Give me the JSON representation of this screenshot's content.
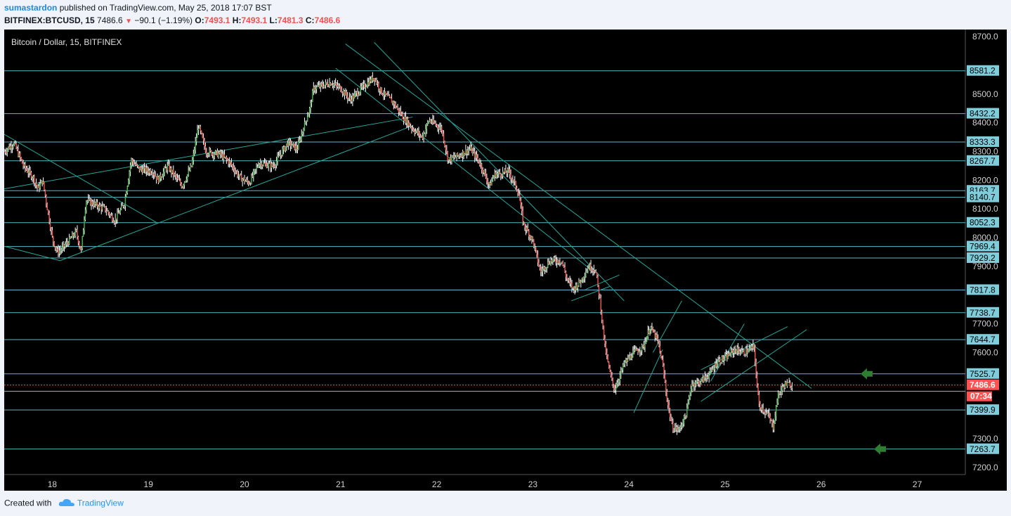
{
  "header": {
    "author": "sumastardon",
    "published_text": "published on TradingView.com, May 25, 2018 17:07 BST",
    "symbol": "BITFINEX:BTCUSD, 15",
    "last": "7486.6",
    "change": "−90.1 (−1.19%)",
    "o_label": "O:",
    "o_value": "7493.1",
    "h_label": "H:",
    "h_value": "7493.1",
    "l_label": "L:",
    "l_value": "7481.3",
    "c_label": "C:",
    "c_value": "7486.6"
  },
  "footer": {
    "created_with": "Created with",
    "brand": "TradingView"
  },
  "colors": {
    "background": "#000000",
    "level_line": "#5fb7c9",
    "trend_line": "#26a69a",
    "up": "#4caf50",
    "down": "#ef5350",
    "wick": "#ffffff",
    "price_line": "#ff5252",
    "arrow": "#2e7d32",
    "label_bg": "#7fcddb"
  },
  "chart_data": {
    "type": "candlestick",
    "title": "Bitcoin / Dollar, 15, BITFINEX",
    "ylim": [
      7175,
      8725
    ],
    "y_ticks": [
      7200,
      7300,
      7600,
      7700,
      7900,
      8000,
      8100,
      8200,
      8300,
      8400,
      8500,
      8700
    ],
    "y_tick_labels": [
      "7200.0",
      "7300.0",
      "7600.0",
      "7700.0",
      "7900.0",
      "8000.0",
      "8100.0",
      "8200.0",
      "8300.0",
      "8400.0",
      "8500.0",
      "8700.0"
    ],
    "x_ticks": [
      "18",
      "19",
      "20",
      "21",
      "22",
      "23",
      "24",
      "25",
      "26",
      "27"
    ],
    "xlim": [
      17.5,
      27.5
    ],
    "levels": [
      8581.2,
      8432.2,
      8333.3,
      8267.7,
      8163.7,
      8140.7,
      8052.3,
      7969.4,
      7929.2,
      7817.8,
      7738.7,
      7644.7,
      7525.7,
      7399.9,
      7263.7
    ],
    "level_labels": [
      "8581.2",
      "8432.2",
      "8333.3",
      "8267.7",
      "8163.7",
      "8140.7",
      "8052.3",
      "7969.4",
      "7929.2",
      "7817.8",
      "7738.7",
      "7644.7",
      "7525.7",
      "7399.9",
      "7263.7"
    ],
    "extra_gray_line": 7465,
    "current_price": 7486.6,
    "current_price_label": "7486.6",
    "countdown": "07:34",
    "price_path": [
      [
        17.5,
        8300
      ],
      [
        17.6,
        8330
      ],
      [
        17.7,
        8250
      ],
      [
        17.8,
        8210
      ],
      [
        17.85,
        8170
      ],
      [
        17.9,
        8200
      ],
      [
        18.0,
        8000
      ],
      [
        18.05,
        7950
      ],
      [
        18.1,
        7960
      ],
      [
        18.25,
        8020
      ],
      [
        18.3,
        7950
      ],
      [
        18.35,
        8130
      ],
      [
        18.55,
        8100
      ],
      [
        18.65,
        8060
      ],
      [
        18.75,
        8120
      ],
      [
        18.82,
        8270
      ],
      [
        18.9,
        8240
      ],
      [
        19.05,
        8230
      ],
      [
        19.1,
        8200
      ],
      [
        19.2,
        8250
      ],
      [
        19.35,
        8180
      ],
      [
        19.45,
        8250
      ],
      [
        19.52,
        8390
      ],
      [
        19.6,
        8300
      ],
      [
        19.75,
        8290
      ],
      [
        19.85,
        8260
      ],
      [
        19.95,
        8210
      ],
      [
        20.05,
        8190
      ],
      [
        20.15,
        8260
      ],
      [
        20.3,
        8250
      ],
      [
        20.45,
        8330
      ],
      [
        20.55,
        8310
      ],
      [
        20.62,
        8390
      ],
      [
        20.68,
        8450
      ],
      [
        20.72,
        8520
      ],
      [
        20.9,
        8540
      ],
      [
        21.0,
        8520
      ],
      [
        21.1,
        8480
      ],
      [
        21.25,
        8530
      ],
      [
        21.35,
        8560
      ],
      [
        21.42,
        8510
      ],
      [
        21.55,
        8470
      ],
      [
        21.65,
        8420
      ],
      [
        21.75,
        8380
      ],
      [
        21.85,
        8350
      ],
      [
        21.92,
        8410
      ],
      [
        22.05,
        8380
      ],
      [
        22.12,
        8270
      ],
      [
        22.25,
        8290
      ],
      [
        22.35,
        8310
      ],
      [
        22.45,
        8260
      ],
      [
        22.55,
        8180
      ],
      [
        22.6,
        8220
      ],
      [
        22.75,
        8230
      ],
      [
        22.85,
        8160
      ],
      [
        22.9,
        8050
      ],
      [
        23.0,
        7990
      ],
      [
        23.08,
        7880
      ],
      [
        23.18,
        7920
      ],
      [
        23.3,
        7920
      ],
      [
        23.35,
        7860
      ],
      [
        23.42,
        7820
      ],
      [
        23.5,
        7850
      ],
      [
        23.58,
        7900
      ],
      [
        23.65,
        7890
      ],
      [
        23.7,
        7780
      ],
      [
        23.75,
        7620
      ],
      [
        23.8,
        7530
      ],
      [
        23.85,
        7470
      ],
      [
        23.95,
        7560
      ],
      [
        24.05,
        7600
      ],
      [
        24.15,
        7620
      ],
      [
        24.22,
        7690
      ],
      [
        24.3,
        7640
      ],
      [
        24.35,
        7560
      ],
      [
        24.4,
        7430
      ],
      [
        24.45,
        7340
      ],
      [
        24.52,
        7330
      ],
      [
        24.6,
        7390
      ],
      [
        24.65,
        7490
      ],
      [
        24.75,
        7500
      ],
      [
        24.85,
        7530
      ],
      [
        24.92,
        7570
      ],
      [
        25.0,
        7580
      ],
      [
        25.1,
        7610
      ],
      [
        25.2,
        7600
      ],
      [
        25.3,
        7620
      ],
      [
        25.35,
        7420
      ],
      [
        25.45,
        7380
      ],
      [
        25.5,
        7340
      ],
      [
        25.55,
        7450
      ],
      [
        25.62,
        7490
      ],
      [
        25.7,
        7486.6
      ]
    ],
    "trend_lines": [
      [
        [
          17.5,
          8170
        ],
        [
          21.75,
          8420
        ]
      ],
      [
        [
          18.08,
          7920
        ],
        [
          21.75,
          8390
        ]
      ],
      [
        [
          17.5,
          7970
        ],
        [
          18.08,
          7920
        ]
      ],
      [
        [
          17.5,
          8360
        ],
        [
          19.1,
          8050
        ]
      ],
      [
        [
          21.05,
          8675
        ],
        [
          25.9,
          7475
        ]
      ],
      [
        [
          20.95,
          8590
        ],
        [
          23.6,
          7890
        ]
      ],
      [
        [
          21.35,
          8680
        ],
        [
          23.95,
          7780
        ]
      ],
      [
        [
          23.55,
          7820
        ],
        [
          23.9,
          7870
        ]
      ],
      [
        [
          23.4,
          7780
        ],
        [
          23.8,
          7830
        ]
      ],
      [
        [
          24.05,
          7390
        ],
        [
          24.35,
          7610
        ]
      ],
      [
        [
          24.25,
          7600
        ],
        [
          24.55,
          7780
        ]
      ],
      [
        [
          24.75,
          7540
        ],
        [
          25.65,
          7690
        ]
      ],
      [
        [
          24.75,
          7430
        ],
        [
          25.85,
          7680
        ]
      ],
      [
        [
          24.85,
          7500
        ],
        [
          25.2,
          7700
        ]
      ]
    ],
    "arrow_levels": [
      7525.7,
      7263.7
    ],
    "grid": false
  }
}
